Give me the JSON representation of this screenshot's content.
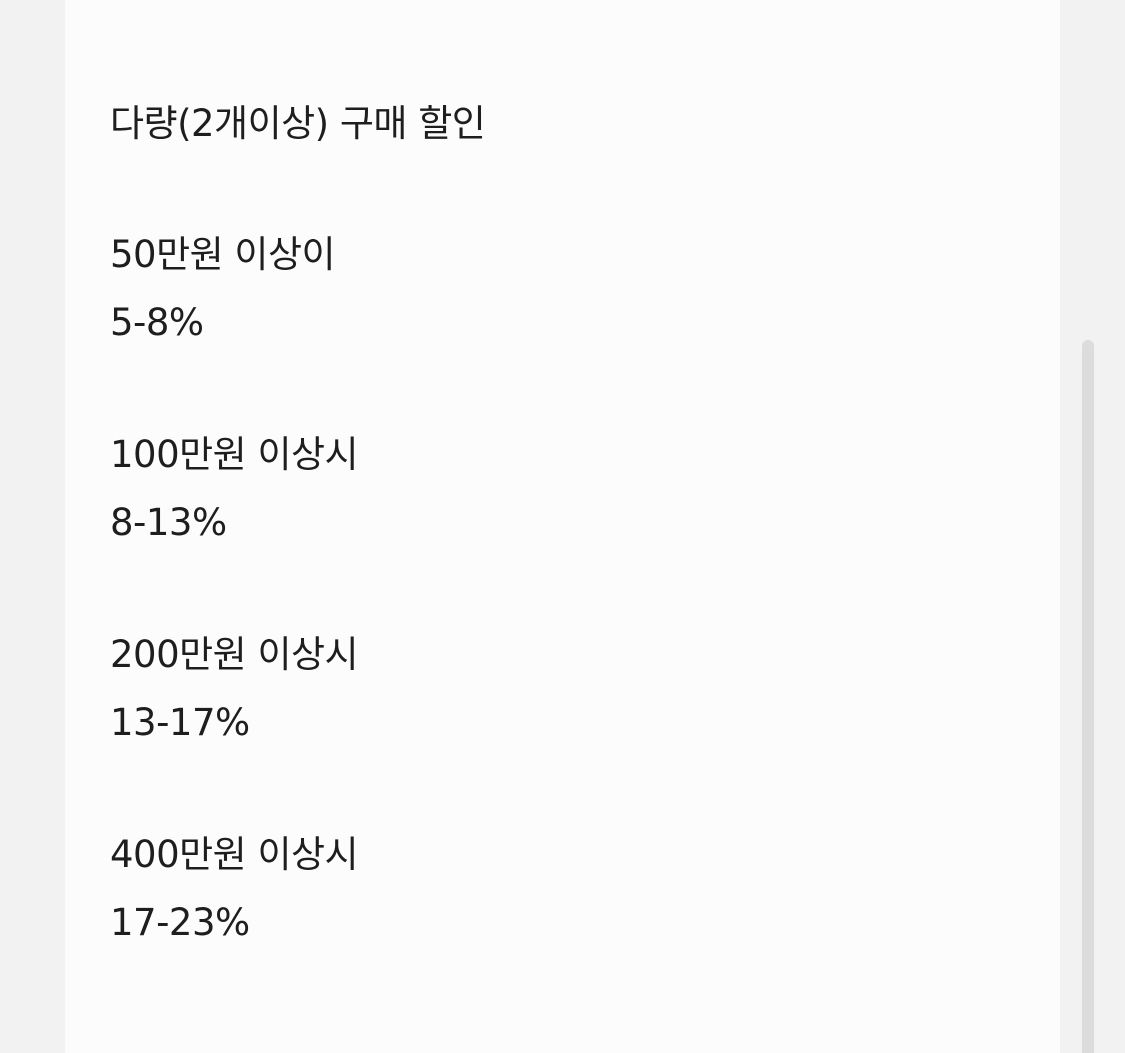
{
  "title": "다량(2개이상) 구매 할인",
  "tiers": [
    {
      "condition": "50만원 이상이",
      "discount": "5-8%"
    },
    {
      "condition": "100만원 이상시",
      "discount": "8-13%"
    },
    {
      "condition": "200만원 이상시",
      "discount": "13-17%"
    },
    {
      "condition": "400만원 이상시",
      "discount": "17-23%"
    }
  ]
}
